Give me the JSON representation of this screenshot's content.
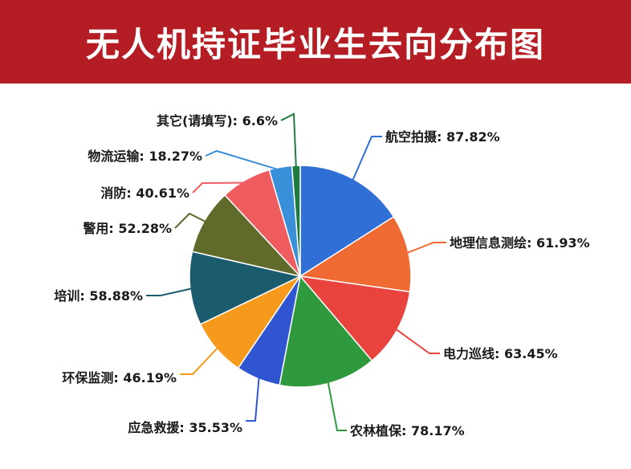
{
  "title": "无人机持证毕业生去向分布图",
  "colors": {
    "header_bg": "#b41d24",
    "title_text": "#ffffff"
  },
  "chart_data": {
    "type": "pie",
    "title": "无人机持证毕业生去向分布图",
    "slices": [
      {
        "label": "航空拍摄: 87.82%",
        "value": 87.82,
        "color": "#2f6fd6"
      },
      {
        "label": "地理信息测绘: 61.93%",
        "value": 61.93,
        "color": "#f06a33"
      },
      {
        "label": "电力巡线: 63.45%",
        "value": 63.45,
        "color": "#e9433e"
      },
      {
        "label": "农林植保: 78.17%",
        "value": 78.17,
        "color": "#2f9a3d"
      },
      {
        "label": "应急救援: 35.53%",
        "value": 35.53,
        "color": "#2f56d0"
      },
      {
        "label": "环保监测: 46.19%",
        "value": 46.19,
        "color": "#f59a1c"
      },
      {
        "label": "培训: 58.88%",
        "value": 58.88,
        "color": "#1b5b6e"
      },
      {
        "label": "警用: 52.28%",
        "value": 52.28,
        "color": "#5f6a2b"
      },
      {
        "label": "消防: 40.61%",
        "value": 40.61,
        "color": "#ee5c5f"
      },
      {
        "label": "物流运输: 18.27%",
        "value": 18.27,
        "color": "#3a8fd9"
      },
      {
        "label": "其它(请填写): 6.6%",
        "value": 6.6,
        "color": "#1f7a40"
      }
    ],
    "legend": "none"
  }
}
